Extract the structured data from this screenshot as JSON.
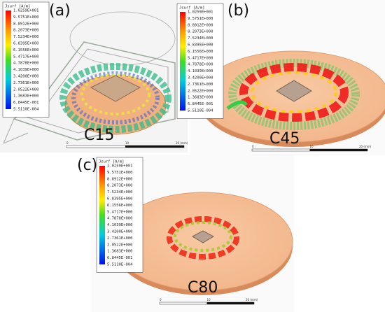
{
  "legend": {
    "title": "Jsurf [A/m]",
    "values": [
      "1.0259E+001",
      "9.5751E+000",
      "8.8912E+000",
      "8.2073E+000",
      "7.5234E+000",
      "6.8395E+000",
      "6.1556E+000",
      "5.4717E+000",
      "4.7878E+000",
      "4.1039E+000",
      "3.4200E+000",
      "2.7361E+000",
      "2.0522E+000",
      "1.3683E+000",
      "6.8445E-001",
      "5.5110E-004"
    ]
  },
  "scale": {
    "start": "0",
    "middle": "10",
    "end": "20 (mm)"
  },
  "panels": [
    {
      "label": "(a)",
      "name": "C15"
    },
    {
      "label": "(b)",
      "name": "C45"
    },
    {
      "label": "(c)",
      "name": "C80"
    }
  ]
}
